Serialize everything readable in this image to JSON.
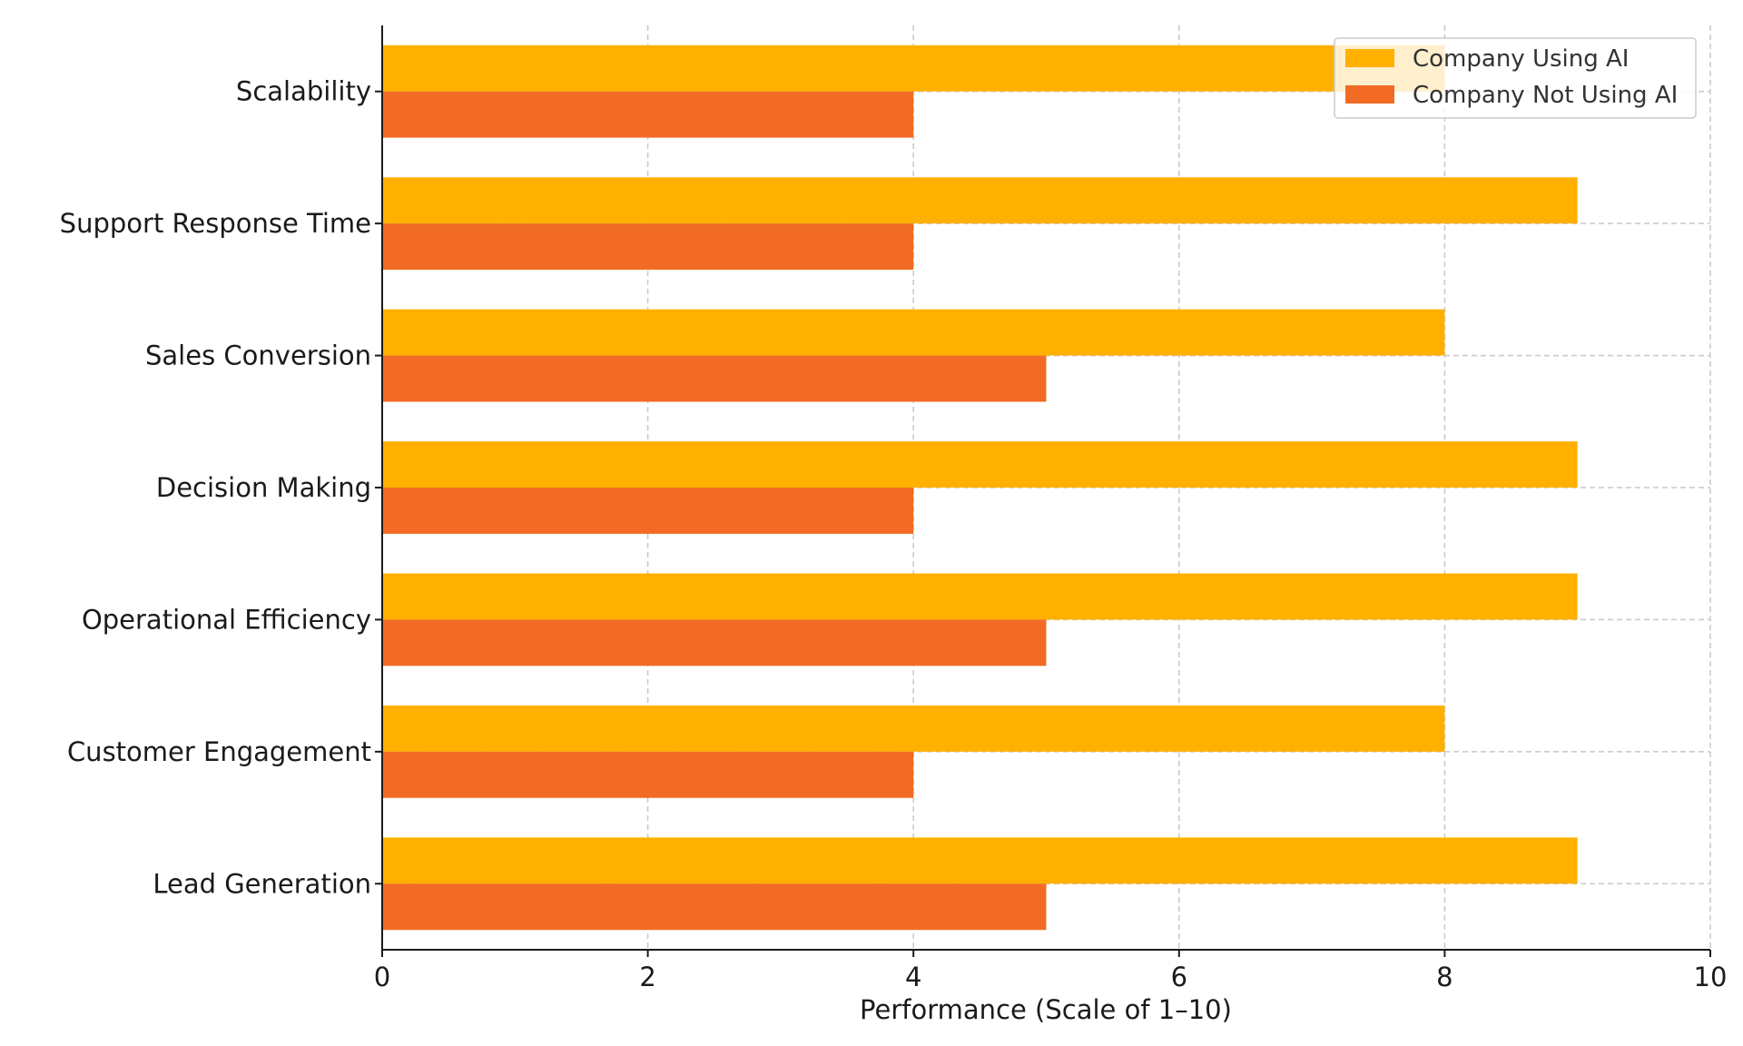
{
  "chart_data": {
    "type": "bar",
    "orientation": "horizontal",
    "categories": [
      "Lead Generation",
      "Customer Engagement",
      "Operational Efficiency",
      "Decision Making",
      "Sales Conversion",
      "Support Response Time",
      "Scalability"
    ],
    "series": [
      {
        "name": "Company Using AI",
        "values": [
          9,
          8,
          9,
          9,
          8,
          9,
          8
        ],
        "color": "#FFB000"
      },
      {
        "name": "Company Not Using AI",
        "values": [
          5,
          4,
          5,
          4,
          5,
          4,
          4
        ],
        "color": "#F26B24"
      }
    ],
    "title": "",
    "xlabel": "Performance (Scale of 1–10)",
    "ylabel": "",
    "xlim": [
      0,
      10
    ],
    "xticks": [
      "0",
      "2",
      "4",
      "6",
      "8",
      "10"
    ],
    "grid": true,
    "legend_position": "top-right"
  }
}
